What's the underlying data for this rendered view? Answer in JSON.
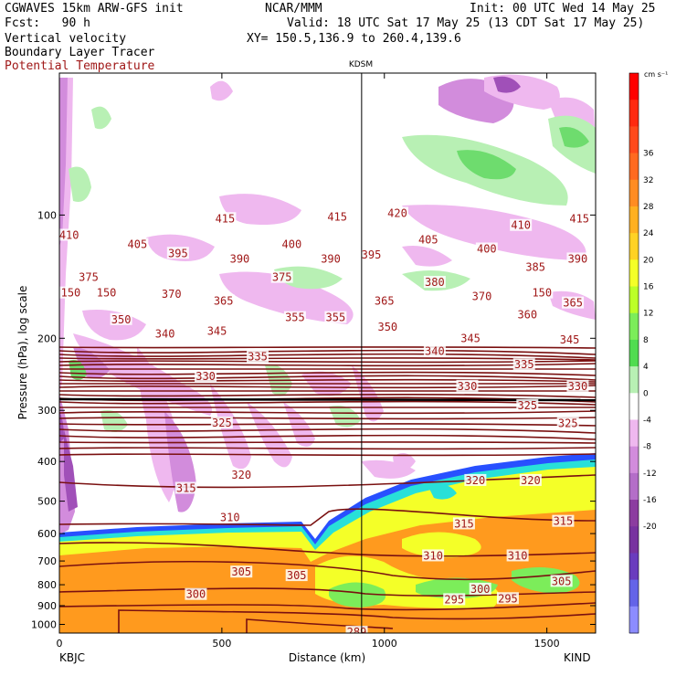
{
  "header": {
    "model": "CGWAVES 15km ARW-GFS init",
    "org": "NCAR/MMM",
    "init": "Init: 00 UTC Wed 14 May 25",
    "fcst": "Fcst:   90 h",
    "valid": "Valid: 18 UTC Sat 17 May 25 (13 CDT Sat 17 May 25)",
    "field1": "Vertical velocity",
    "field2": "Boundary Layer Tracer",
    "field3": "Potential Temperature",
    "xy": "XY= 150.5,136.9 to 260.4,139.6",
    "marker_label": "KDSM",
    "left_station": "KBJC",
    "right_station": "KIND"
  },
  "colors": {
    "theta_line": "#7a1010",
    "theta_text": "#a01818",
    "bl_orange": "#ff9a1e",
    "bl_yellow": "#f4ff28",
    "bl_green": "#7ced5a",
    "bl_cyan": "#28e0d8",
    "bl_blue": "#2850ff",
    "w_light_pink": "#efb8ef",
    "w_pink": "#d28cdc",
    "w_purple": "#a050b8",
    "w_light_green": "#b8f0b4",
    "w_green": "#6edc6e"
  },
  "chart_data": {
    "type": "heatmap",
    "title": "",
    "xlabel": "Distance (km)",
    "ylabel": "Pressure (hPa), log scale",
    "xlim": [
      0,
      1650
    ],
    "ylim": [
      1050,
      45
    ],
    "y_scale": "log",
    "x_ticks": [
      0,
      500,
      1000,
      1500
    ],
    "y_ticks": [
      100,
      200,
      300,
      400,
      500,
      600,
      700,
      800,
      900,
      1000
    ],
    "marker_x_km": 930,
    "colorbar": {
      "unit": "cm s⁻¹",
      "levels": [
        36,
        32,
        28,
        24,
        20,
        16,
        12,
        8,
        4,
        0,
        -4,
        -8,
        -12,
        -16,
        -20
      ],
      "colors": [
        "#ff0000",
        "#ff2a10",
        "#ff4a1c",
        "#ff6a20",
        "#ff8c22",
        "#ffb020",
        "#ffd224",
        "#f4ff28",
        "#bcff28",
        "#7ced5a",
        "#50dc50",
        "#b8f0b4",
        "#ffffff",
        "#efb8ef",
        "#d28cdc",
        "#b46ec8",
        "#8c3ca0",
        "#7832a0",
        "#6a3cbe",
        "#6464e8",
        "#8c8cff"
      ]
    },
    "theta_contour_labels": [
      {
        "v": "410",
        "x": 30,
        "p": 112
      },
      {
        "v": "415",
        "x": 510,
        "p": 102
      },
      {
        "v": "415",
        "x": 855,
        "p": 101
      },
      {
        "v": "420",
        "x": 1040,
        "p": 99
      },
      {
        "v": "410",
        "x": 1420,
        "p": 106
      },
      {
        "v": "415",
        "x": 1600,
        "p": 102
      },
      {
        "v": "405",
        "x": 240,
        "p": 118
      },
      {
        "v": "395",
        "x": 365,
        "p": 124
      },
      {
        "v": "390",
        "x": 555,
        "p": 128
      },
      {
        "v": "400",
        "x": 715,
        "p": 118
      },
      {
        "v": "390",
        "x": 835,
        "p": 128
      },
      {
        "v": "395",
        "x": 960,
        "p": 125
      },
      {
        "v": "405",
        "x": 1135,
        "p": 115
      },
      {
        "v": "400",
        "x": 1315,
        "p": 121
      },
      {
        "v": "385",
        "x": 1465,
        "p": 134
      },
      {
        "v": "390",
        "x": 1595,
        "p": 128
      },
      {
        "v": "375",
        "x": 90,
        "p": 142
      },
      {
        "v": "375",
        "x": 685,
        "p": 142
      },
      {
        "v": "380",
        "x": 1155,
        "p": 146
      },
      {
        "v": "150",
        "x": 35,
        "p": 155
      },
      {
        "v": "150",
        "x": 145,
        "p": 155
      },
      {
        "v": "370",
        "x": 345,
        "p": 156
      },
      {
        "v": "365",
        "x": 505,
        "p": 162
      },
      {
        "v": "365",
        "x": 1000,
        "p": 162
      },
      {
        "v": "370",
        "x": 1300,
        "p": 158
      },
      {
        "v": "150",
        "x": 1485,
        "p": 155
      },
      {
        "v": "365",
        "x": 1580,
        "p": 164
      },
      {
        "v": "350",
        "x": 190,
        "p": 180
      },
      {
        "v": "355",
        "x": 725,
        "p": 178
      },
      {
        "v": "355",
        "x": 850,
        "p": 178
      },
      {
        "v": "360",
        "x": 1440,
        "p": 175
      },
      {
        "v": "340",
        "x": 325,
        "p": 195
      },
      {
        "v": "345",
        "x": 485,
        "p": 192
      },
      {
        "v": "350",
        "x": 1010,
        "p": 188
      },
      {
        "v": "345",
        "x": 1265,
        "p": 200
      },
      {
        "v": "345",
        "x": 1570,
        "p": 202
      },
      {
        "v": "335",
        "x": 610,
        "p": 222
      },
      {
        "v": "340",
        "x": 1155,
        "p": 215
      },
      {
        "v": "335",
        "x": 1430,
        "p": 232
      },
      {
        "v": "330",
        "x": 450,
        "p": 248
      },
      {
        "v": "330",
        "x": 1255,
        "p": 262
      },
      {
        "v": "330",
        "x": 1595,
        "p": 262
      },
      {
        "v": "325",
        "x": 500,
        "p": 322
      },
      {
        "v": "325",
        "x": 1440,
        "p": 292
      },
      {
        "v": "325",
        "x": 1565,
        "p": 323
      },
      {
        "v": "320",
        "x": 560,
        "p": 432
      },
      {
        "v": "320",
        "x": 1280,
        "p": 445
      },
      {
        "v": "320",
        "x": 1450,
        "p": 445
      },
      {
        "v": "315",
        "x": 390,
        "p": 465
      },
      {
        "v": "315",
        "x": 1245,
        "p": 568
      },
      {
        "v": "315",
        "x": 1550,
        "p": 560
      },
      {
        "v": "310",
        "x": 525,
        "p": 548
      },
      {
        "v": "310",
        "x": 1150,
        "p": 680
      },
      {
        "v": "310",
        "x": 1410,
        "p": 680
      },
      {
        "v": "305",
        "x": 560,
        "p": 745
      },
      {
        "v": "305",
        "x": 730,
        "p": 760
      },
      {
        "v": "305",
        "x": 1545,
        "p": 785
      },
      {
        "v": "300",
        "x": 420,
        "p": 845
      },
      {
        "v": "300",
        "x": 1295,
        "p": 820
      },
      {
        "v": "295",
        "x": 1215,
        "p": 870
      },
      {
        "v": "295",
        "x": 1380,
        "p": 865
      },
      {
        "v": "289",
        "x": 915,
        "p": 1045
      }
    ]
  }
}
